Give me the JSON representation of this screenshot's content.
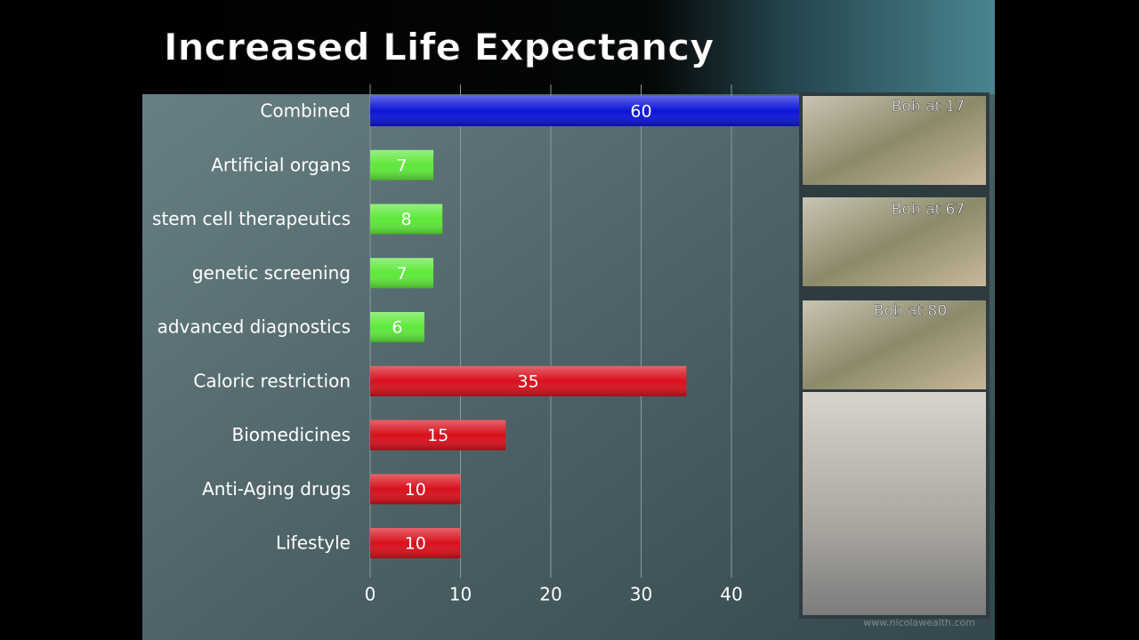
{
  "chart_data": {
    "type": "hbar",
    "title": "Increased Life Expectancy",
    "categories": [
      "Combined",
      "Artificial organs",
      "stem cell therapeutics",
      "genetic screening",
      "advanced diagnostics",
      "Caloric restriction",
      "Biomedicines",
      "Anti-Aging drugs",
      "Lifestyle"
    ],
    "values": [
      60,
      7,
      8,
      7,
      6,
      35,
      15,
      10,
      10
    ],
    "colors": [
      "#0a14d8",
      "#5ee83a",
      "#5ee83a",
      "#5ee83a",
      "#5ee83a",
      "#d8101c",
      "#d8101c",
      "#d8101c",
      "#d8101c"
    ],
    "xlim": [
      0,
      60
    ],
    "xticks": [
      0,
      10,
      20,
      30,
      40
    ],
    "grid": true
  },
  "photos": [
    "Bob at 17",
    "Bob at 67",
    "Bob at 80"
  ],
  "watermark": "www.nicolawealth.com"
}
